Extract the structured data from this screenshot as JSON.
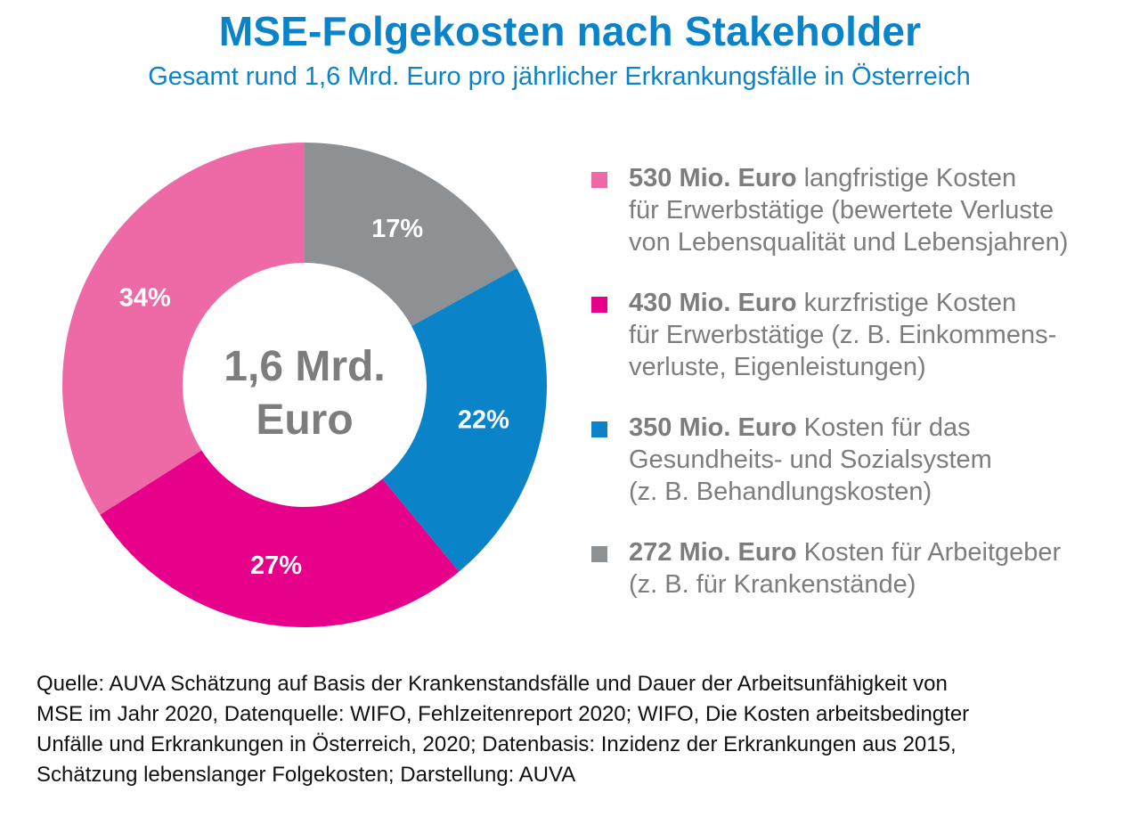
{
  "colors": {
    "title": "#0a83c9",
    "text_gray": "#7d7d7d",
    "slice_long_term": "#ee6aa7",
    "slice_short_term": "#e6008a",
    "slice_health_system": "#0a83c9",
    "slice_employer": "#8e9194"
  },
  "chart_data": {
    "type": "pie",
    "title": "MSE-Folgekosten nach Stakeholder",
    "subtitle": "Gesamt rund 1,6 Mrd. Euro pro jährlicher Erkrankungsfälle in Österreich",
    "center_label": [
      "1,6 Mrd.",
      "Euro"
    ],
    "slices": [
      {
        "key": "employer",
        "percent": 17,
        "label": "17%",
        "amount_mio_euro": 272
      },
      {
        "key": "health_system",
        "percent": 22,
        "label": "22%",
        "amount_mio_euro": 350
      },
      {
        "key": "short_term",
        "percent": 27,
        "label": "27%",
        "amount_mio_euro": 430
      },
      {
        "key": "long_term",
        "percent": 34,
        "label": "34%",
        "amount_mio_euro": 530
      }
    ],
    "legend": [
      {
        "key": "long_term",
        "amount": "530 Mio. Euro",
        "text_lines": [
          " langfristige Kosten",
          "für Erwerbstätige (bewertete Verluste",
          "von Lebensqualität und Lebensjahren)"
        ]
      },
      {
        "key": "short_term",
        "amount": "430 Mio. Euro",
        "text_lines": [
          " kurzfristige Kosten",
          "für Erwerbstätige (z. B. Einkommens-",
          "verluste, Eigenleistungen)"
        ]
      },
      {
        "key": "health_system",
        "amount": "350 Mio. Euro",
        "text_lines": [
          " Kosten für das",
          "Gesundheits- und Sozialsystem",
          "(z. B. Behandlungskosten)"
        ]
      },
      {
        "key": "employer",
        "amount": "272 Mio. Euro",
        "text_lines": [
          " Kosten für Arbeitgeber",
          "(z. B. für Krankenstände)"
        ]
      }
    ]
  },
  "source": {
    "lines": [
      "Quelle: AUVA Schätzung auf Basis der Krankenstandsfälle und Dauer der Arbeitsunfähigkeit von",
      "MSE im Jahr 2020, Datenquelle: WIFO, Fehlzeitenreport 2020; WIFO, Die Kosten arbeitsbedingter",
      "Unfälle und Erkrankungen in Österreich, 2020; Datenbasis: Inzidenz der Erkrankungen aus 2015,",
      "Schätzung lebenslanger Folgekosten; Darstellung: AUVA"
    ]
  }
}
